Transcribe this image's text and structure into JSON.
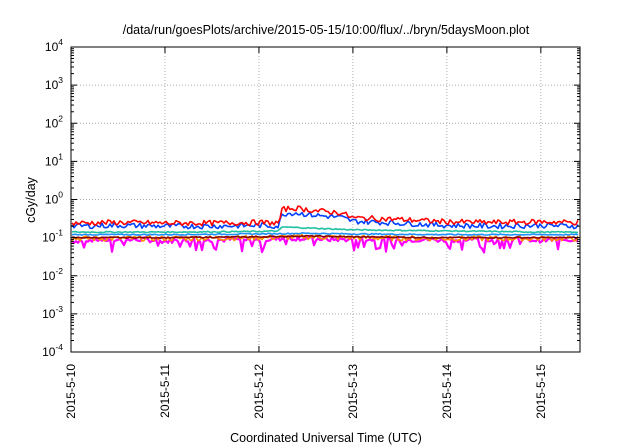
{
  "chart_data": {
    "type": "line",
    "title": "/data/run/goesPlots/archive/2015-05-15/10:00/flux/../bryn/5daysMoon.plot",
    "xlabel": "Coordinated Universal Time (UTC)",
    "ylabel": "cGy/day",
    "yscale": "log",
    "ylim": [
      0.0001,
      10000
    ],
    "xlim": [
      "2015-05-10T00:00",
      "2015-05-15T10:00"
    ],
    "grid": true,
    "legend": "none",
    "y_ticks": [
      {
        "base": "10",
        "exp": "-4",
        "value": 0.0001
      },
      {
        "base": "10",
        "exp": "-3",
        "value": 0.001
      },
      {
        "base": "10",
        "exp": "-2",
        "value": 0.01
      },
      {
        "base": "10",
        "exp": "-1",
        "value": 0.1
      },
      {
        "base": "10",
        "exp": "0",
        "value": 1
      },
      {
        "base": "10",
        "exp": "1",
        "value": 10
      },
      {
        "base": "10",
        "exp": "2",
        "value": 100
      },
      {
        "base": "10",
        "exp": "3",
        "value": 1000
      },
      {
        "base": "10",
        "exp": "4",
        "value": 10000
      }
    ],
    "x_ticks": [
      {
        "label": "2015-5-10",
        "value": "2015-05-10T00:00"
      },
      {
        "label": "2015-5-11",
        "value": "2015-05-11T00:00"
      },
      {
        "label": "2015-5-12",
        "value": "2015-05-12T00:00"
      },
      {
        "label": "2015-5-13",
        "value": "2015-05-13T00:00"
      },
      {
        "label": "2015-5-14",
        "value": "2015-05-14T00:00"
      },
      {
        "label": "2015-5-15",
        "value": "2015-05-15T00:00"
      }
    ],
    "series": [
      {
        "color": "#ff00ff",
        "style": "noisy-low",
        "points": [
          [
            "2015-05-10T00:00",
            0.08
          ],
          [
            "2015-05-10T06:00",
            0.09
          ],
          [
            "2015-05-10T12:00",
            0.085
          ],
          [
            "2015-05-10T18:00",
            0.09
          ],
          [
            "2015-05-11T00:00",
            0.08
          ],
          [
            "2015-05-11T06:00",
            0.09
          ],
          [
            "2015-05-11T12:00",
            0.085
          ],
          [
            "2015-05-11T18:00",
            0.09
          ],
          [
            "2015-05-12T00:00",
            0.085
          ],
          [
            "2015-05-12T06:00",
            0.095
          ],
          [
            "2015-05-12T12:00",
            0.095
          ],
          [
            "2015-05-12T18:00",
            0.09
          ],
          [
            "2015-05-13T00:00",
            0.09
          ],
          [
            "2015-05-13T06:00",
            0.09
          ],
          [
            "2015-05-13T12:00",
            0.085
          ],
          [
            "2015-05-13T18:00",
            0.09
          ],
          [
            "2015-05-14T00:00",
            0.085
          ],
          [
            "2015-05-14T06:00",
            0.09
          ],
          [
            "2015-05-14T12:00",
            0.085
          ],
          [
            "2015-05-14T18:00",
            0.09
          ],
          [
            "2015-05-15T00:00",
            0.085
          ],
          [
            "2015-05-15T06:00",
            0.09
          ],
          [
            "2015-05-15T10:00",
            0.085
          ]
        ]
      },
      {
        "color": "#ff8c00",
        "style": "noisy",
        "points": [
          [
            "2015-05-10T00:00",
            0.095
          ],
          [
            "2015-05-11T00:00",
            0.095
          ],
          [
            "2015-05-12T00:00",
            0.1
          ],
          [
            "2015-05-12T12:00",
            0.105
          ],
          [
            "2015-05-13T00:00",
            0.1
          ],
          [
            "2015-05-14T00:00",
            0.095
          ],
          [
            "2015-05-15T00:00",
            0.095
          ],
          [
            "2015-05-15T10:00",
            0.095
          ]
        ]
      },
      {
        "color": "#8b0000",
        "style": "smooth",
        "points": [
          [
            "2015-05-10T00:00",
            0.1
          ],
          [
            "2015-05-11T00:00",
            0.1
          ],
          [
            "2015-05-12T00:00",
            0.105
          ],
          [
            "2015-05-12T12:00",
            0.11
          ],
          [
            "2015-05-13T00:00",
            0.105
          ],
          [
            "2015-05-14T00:00",
            0.1
          ],
          [
            "2015-05-15T00:00",
            0.1
          ],
          [
            "2015-05-15T10:00",
            0.1
          ]
        ]
      },
      {
        "color": "#1e90ff",
        "style": "smooth",
        "points": [
          [
            "2015-05-10T00:00",
            0.12
          ],
          [
            "2015-05-11T00:00",
            0.12
          ],
          [
            "2015-05-12T00:00",
            0.125
          ],
          [
            "2015-05-12T12:00",
            0.13
          ],
          [
            "2015-05-13T00:00",
            0.125
          ],
          [
            "2015-05-14T00:00",
            0.12
          ],
          [
            "2015-05-15T00:00",
            0.12
          ],
          [
            "2015-05-15T10:00",
            0.12
          ]
        ]
      },
      {
        "color": "#20c0a0",
        "style": "smooth",
        "points": [
          [
            "2015-05-10T00:00",
            0.14
          ],
          [
            "2015-05-11T00:00",
            0.14
          ],
          [
            "2015-05-12T00:00",
            0.145
          ],
          [
            "2015-05-12T05:00",
            0.15
          ],
          [
            "2015-05-12T06:00",
            0.19
          ],
          [
            "2015-05-12T12:00",
            0.18
          ],
          [
            "2015-05-13T00:00",
            0.16
          ],
          [
            "2015-05-13T12:00",
            0.155
          ],
          [
            "2015-05-14T00:00",
            0.15
          ],
          [
            "2015-05-15T00:00",
            0.14
          ],
          [
            "2015-05-15T10:00",
            0.14
          ]
        ]
      },
      {
        "color": "#0040ff",
        "style": "noisy",
        "points": [
          [
            "2015-05-10T00:00",
            0.2
          ],
          [
            "2015-05-10T12:00",
            0.21
          ],
          [
            "2015-05-11T00:00",
            0.2
          ],
          [
            "2015-05-11T12:00",
            0.2
          ],
          [
            "2015-05-12T00:00",
            0.21
          ],
          [
            "2015-05-12T05:00",
            0.2
          ],
          [
            "2015-05-12T06:00",
            0.42
          ],
          [
            "2015-05-12T09:00",
            0.45
          ],
          [
            "2015-05-12T15:00",
            0.38
          ],
          [
            "2015-05-12T21:00",
            0.34
          ],
          [
            "2015-05-13T00:00",
            0.27
          ],
          [
            "2015-05-13T12:00",
            0.24
          ],
          [
            "2015-05-14T00:00",
            0.21
          ],
          [
            "2015-05-14T12:00",
            0.2
          ],
          [
            "2015-05-15T00:00",
            0.21
          ],
          [
            "2015-05-15T10:00",
            0.2
          ]
        ]
      },
      {
        "color": "#ff0000",
        "style": "noisy",
        "points": [
          [
            "2015-05-10T00:00",
            0.24
          ],
          [
            "2015-05-10T12:00",
            0.25
          ],
          [
            "2015-05-11T00:00",
            0.24
          ],
          [
            "2015-05-11T12:00",
            0.24
          ],
          [
            "2015-05-12T00:00",
            0.25
          ],
          [
            "2015-05-12T05:00",
            0.24
          ],
          [
            "2015-05-12T06:00",
            0.55
          ],
          [
            "2015-05-12T09:00",
            0.6
          ],
          [
            "2015-05-12T15:00",
            0.5
          ],
          [
            "2015-05-12T21:00",
            0.45
          ],
          [
            "2015-05-13T00:00",
            0.33
          ],
          [
            "2015-05-13T12:00",
            0.3
          ],
          [
            "2015-05-14T00:00",
            0.26
          ],
          [
            "2015-05-14T12:00",
            0.25
          ],
          [
            "2015-05-15T00:00",
            0.26
          ],
          [
            "2015-05-15T10:00",
            0.25
          ]
        ]
      }
    ]
  }
}
